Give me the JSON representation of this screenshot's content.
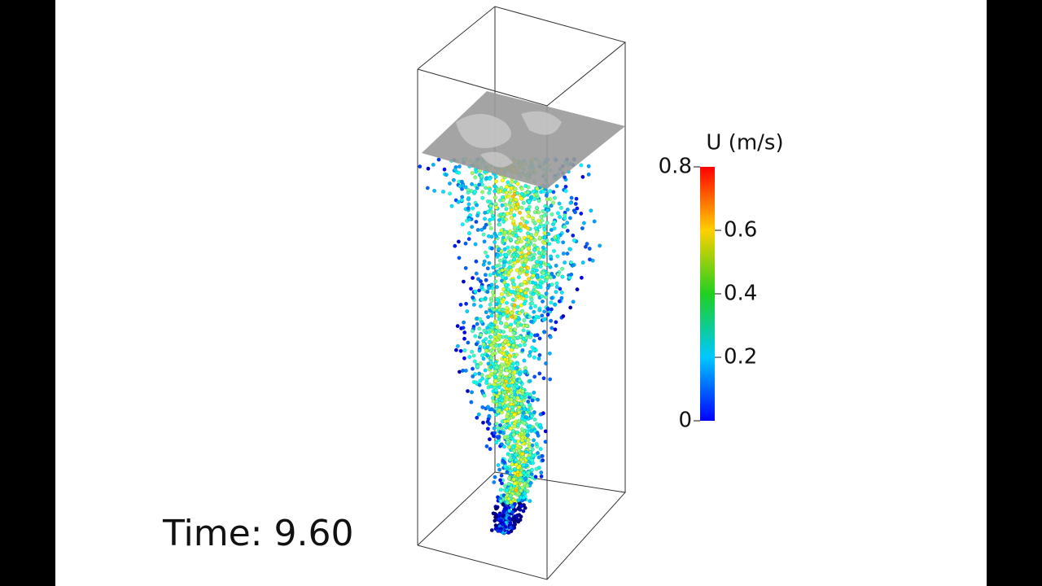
{
  "time_label": "Time: 9.60",
  "colorbar": {
    "title": "U (m/s)",
    "range": [
      0,
      0.8
    ],
    "ticks": [
      0,
      0.2,
      0.4,
      0.6,
      0.8
    ]
  }
}
